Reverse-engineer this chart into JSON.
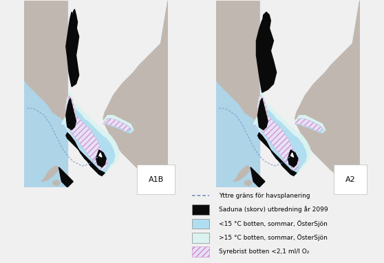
{
  "figsize": [
    5.58,
    3.82
  ],
  "dpi": 100,
  "background_color": "#f0f0f0",
  "outer_sea_color": "#aed4e8",
  "land_color": "#c0b8b0",
  "cold_water_color": "#b0ddf0",
  "warm_water_color": "#daf2f0",
  "saduna_color": "#0a0a0a",
  "hatch_facecolor": "#e8e0f8",
  "hatch_edgecolor": "#cc99cc",
  "border_line_color": "#7799cc",
  "panel_labels": [
    "A1B",
    "A2"
  ],
  "legend_items": [
    {
      "type": "dashed_line",
      "color": "#6688bb",
      "label": "Yttre gräns för havsplanering"
    },
    {
      "type": "filled_rect",
      "color": "#0a0a0a",
      "label": "Saduna (skorv) utbredning år 2099"
    },
    {
      "type": "filled_rect",
      "color": "#b0ddf0",
      "label": "<15 °C botten, sommar, ÖsterSjön"
    },
    {
      "type": "filled_rect",
      "color": "#daf2f0",
      "label": ">15 °C botten, sommar, ÖsterSjön"
    },
    {
      "type": "hatch_rect",
      "facecolor": "#e8e0f8",
      "edgecolor": "#cc88cc",
      "hatch": "////",
      "label": "Syrebrist botten <2,1 ml/l O₂"
    }
  ],
  "legend_fontsize": 6.5,
  "panel_label_fontsize": 8
}
